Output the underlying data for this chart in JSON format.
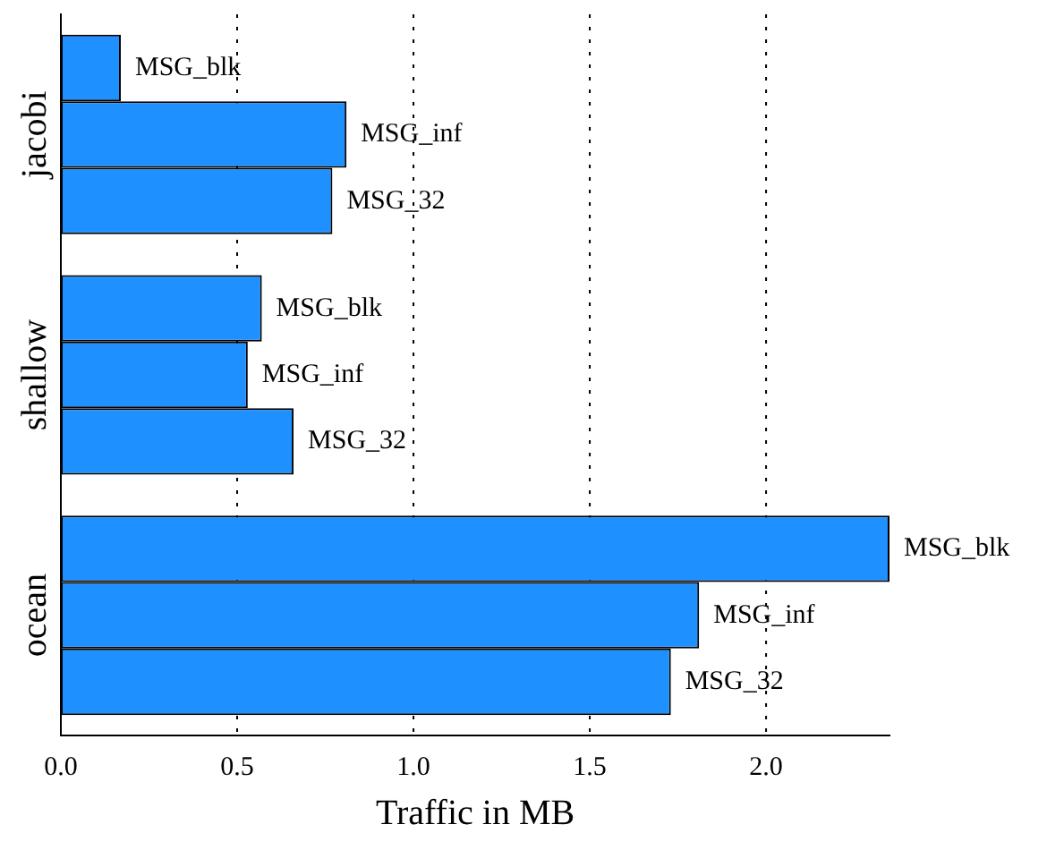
{
  "chart_data": {
    "type": "bar",
    "orientation": "horizontal",
    "xlabel": "Traffic in MB",
    "categories": [
      "jacobi",
      "shallow",
      "ocean"
    ],
    "series": [
      {
        "name": "MSG_blk",
        "color": "#1e90ff",
        "values": [
          0.17,
          0.57,
          2.35
        ]
      },
      {
        "name": "MSG_inf",
        "color": "#1e90ff",
        "values": [
          0.81,
          0.53,
          1.81
        ]
      },
      {
        "name": "MSG_32",
        "color": "#1e90ff",
        "values": [
          0.77,
          0.66,
          1.73
        ]
      }
    ],
    "xlim": [
      0,
      2.35
    ],
    "xticks": [
      {
        "value": 0,
        "label": "0.0"
      },
      {
        "value": 0.5,
        "label": "0.5"
      },
      {
        "value": 1,
        "label": "1.0"
      },
      {
        "value": 1.5,
        "label": "1.5"
      },
      {
        "value": 2,
        "label": "2.0"
      }
    ],
    "grid": "x",
    "legend": false
  }
}
